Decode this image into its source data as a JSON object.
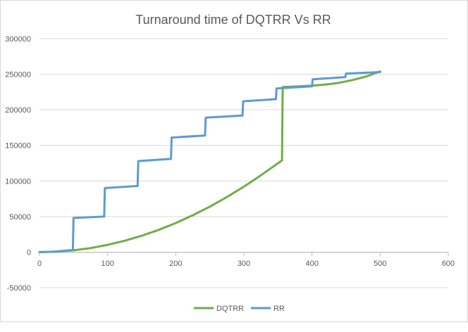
{
  "chart_data": {
    "type": "line",
    "title": "Turnaround time of DQTRR Vs RR",
    "xlabel": "",
    "ylabel": "",
    "xlim": [
      0,
      600
    ],
    "ylim": [
      -50000,
      300000
    ],
    "x_ticks": [
      0,
      100,
      200,
      300,
      400,
      500,
      600
    ],
    "y_ticks": [
      -50000,
      0,
      50000,
      100000,
      150000,
      200000,
      250000,
      300000
    ],
    "x_tick_labels": [
      "0",
      "100",
      "200",
      "300",
      "400",
      "500",
      "600"
    ],
    "y_tick_labels": [
      "-50000",
      "0",
      "50000",
      "100000",
      "150000",
      "200000",
      "250000",
      "300000"
    ],
    "grid": "horizontal",
    "legend_position": "bottom",
    "series": [
      {
        "name": "DQTRR",
        "color": "#70ad47",
        "points": [
          [
            0,
            0
          ],
          [
            25,
            600
          ],
          [
            50,
            2500
          ],
          [
            75,
            5700
          ],
          [
            100,
            10200
          ],
          [
            125,
            15900
          ],
          [
            150,
            23000
          ],
          [
            175,
            31300
          ],
          [
            200,
            40900
          ],
          [
            225,
            51800
          ],
          [
            250,
            63900
          ],
          [
            275,
            77300
          ],
          [
            300,
            92000
          ],
          [
            325,
            108000
          ],
          [
            356,
            129000
          ],
          [
            357,
            232000
          ],
          [
            380,
            233000
          ],
          [
            400,
            234000
          ],
          [
            420,
            235500
          ],
          [
            440,
            238000
          ],
          [
            460,
            242000
          ],
          [
            480,
            247000
          ],
          [
            500,
            254000
          ]
        ]
      },
      {
        "name": "RR",
        "color": "#5b9bd5",
        "points": [
          [
            0,
            0
          ],
          [
            20,
            500
          ],
          [
            49,
            3000
          ],
          [
            50,
            48000
          ],
          [
            95,
            50000
          ],
          [
            96,
            90000
          ],
          [
            144,
            93000
          ],
          [
            145,
            128000
          ],
          [
            193,
            131000
          ],
          [
            194,
            161000
          ],
          [
            243,
            164000
          ],
          [
            244,
            189000
          ],
          [
            298,
            192000
          ],
          [
            299,
            212000
          ],
          [
            347,
            215000
          ],
          [
            348,
            230000
          ],
          [
            400,
            233000
          ],
          [
            401,
            243000
          ],
          [
            449,
            246000
          ],
          [
            450,
            251000
          ],
          [
            500,
            253000
          ]
        ]
      }
    ]
  }
}
